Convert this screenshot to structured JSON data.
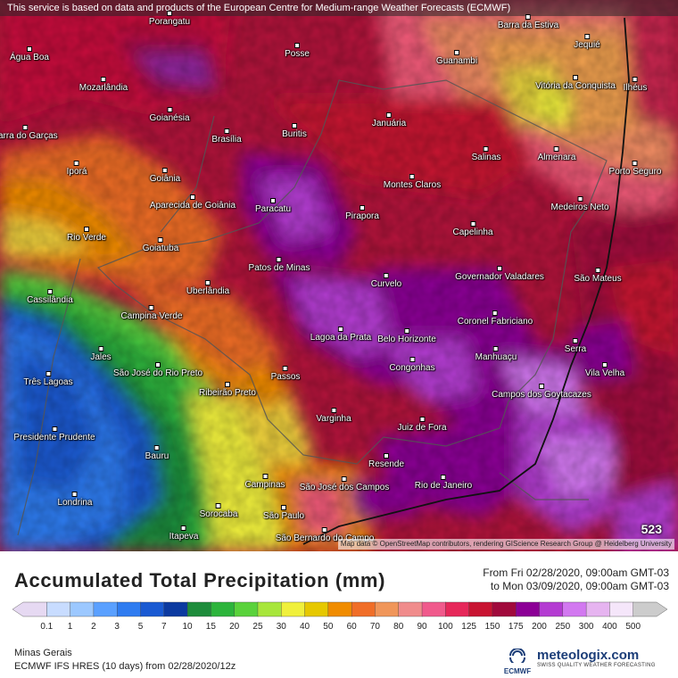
{
  "map": {
    "disclaimer": "This service is based on data and products of the European Centre for Medium-range Weather Forecasts (ECMWF)",
    "attribution": "Map data © OpenStreetMap contributors, rendering GIScience Research Group @ Heidelberg University",
    "max_value": "523",
    "cities": [
      {
        "name": "Porangatu"
      },
      {
        "name": "Barra da Estiva"
      },
      {
        "name": "Água Boa"
      },
      {
        "name": "Posse"
      },
      {
        "name": "Guanambi"
      },
      {
        "name": "Jequié"
      },
      {
        "name": "Mozarlândia"
      },
      {
        "name": "Vitória da Conquista"
      },
      {
        "name": "Ilhéus"
      },
      {
        "name": "Goianésia"
      },
      {
        "name": "Buritis"
      },
      {
        "name": "Januária"
      },
      {
        "name": "Barra do Garças"
      },
      {
        "name": "Brasília"
      },
      {
        "name": "Salinas"
      },
      {
        "name": "Almenara"
      },
      {
        "name": "Iporá"
      },
      {
        "name": "Goiânia"
      },
      {
        "name": "Porto Seguro"
      },
      {
        "name": "Montes Claros"
      },
      {
        "name": "Aparecida de Goiânia"
      },
      {
        "name": "Medeiros Neto"
      },
      {
        "name": "Paracatu"
      },
      {
        "name": "Pirapora"
      },
      {
        "name": "Capelinha"
      },
      {
        "name": "Rio Verde"
      },
      {
        "name": "Goiatuba"
      },
      {
        "name": "Patos de Minas"
      },
      {
        "name": "Governador Valadares"
      },
      {
        "name": "São Mateus"
      },
      {
        "name": "Curvelo"
      },
      {
        "name": "Uberlândia"
      },
      {
        "name": "Cassilândia"
      },
      {
        "name": "Coronel Fabriciano"
      },
      {
        "name": "Campina Verde"
      },
      {
        "name": "Lagoa da Prata"
      },
      {
        "name": "Belo Horizonte"
      },
      {
        "name": "Serra"
      },
      {
        "name": "Manhuaçu"
      },
      {
        "name": "Jales"
      },
      {
        "name": "Vila Velha"
      },
      {
        "name": "São José do Rio Preto"
      },
      {
        "name": "Congonhas"
      },
      {
        "name": "Passos"
      },
      {
        "name": "Três Lagoas"
      },
      {
        "name": "Ribeirão Preto"
      },
      {
        "name": "Campos dos Goytacazes"
      },
      {
        "name": "Varginha"
      },
      {
        "name": "Juiz de Fora"
      },
      {
        "name": "Presidente Prudente"
      },
      {
        "name": "Bauru"
      },
      {
        "name": "Resende"
      },
      {
        "name": "Campinas"
      },
      {
        "name": "Rio de Janeiro"
      },
      {
        "name": "São José dos Campos"
      },
      {
        "name": "Londrina"
      },
      {
        "name": "Sorocaba"
      },
      {
        "name": "São Paulo"
      },
      {
        "name": "São Bernardo do Campo"
      },
      {
        "name": "Itapeva"
      }
    ]
  },
  "legend": {
    "title": "Accumulated Total Precipitation (mm)",
    "from": "From Fri 02/28/2020, 09:00am GMT-03",
    "to": "to Mon 03/09/2020, 09:00am GMT-03",
    "ticks": [
      "0.1",
      "1",
      "2",
      "3",
      "5",
      "7",
      "10",
      "15",
      "20",
      "25",
      "30",
      "40",
      "50",
      "60",
      "70",
      "80",
      "90",
      "100",
      "125",
      "150",
      "175",
      "200",
      "250",
      "300",
      "400",
      "500"
    ],
    "colors": [
      "#e6d9f2",
      "#c8dcff",
      "#9cc8ff",
      "#5aa0ff",
      "#2f7cf0",
      "#1a5ad2",
      "#0c3aa0",
      "#1e8c3c",
      "#2db43c",
      "#5ad23c",
      "#a8e63c",
      "#f0f03c",
      "#e6c800",
      "#f08c00",
      "#f06e28",
      "#f0965a",
      "#f08c8c",
      "#f05a8c",
      "#e6285a",
      "#c81432",
      "#a00a3c",
      "#8c0096",
      "#b43cd2",
      "#d278f0",
      "#e6b4f0",
      "#f5e6fa",
      "#cccccc"
    ]
  },
  "footer": {
    "region": "Minas Gerais",
    "model": "ECMWF IFS HRES (10 days) from 02/28/2020/12z",
    "ecmwf_logo": "ECMWF",
    "brand": "meteologix.com",
    "brand_sub": "SWISS QUALITY WEATHER FORECASTING"
  }
}
